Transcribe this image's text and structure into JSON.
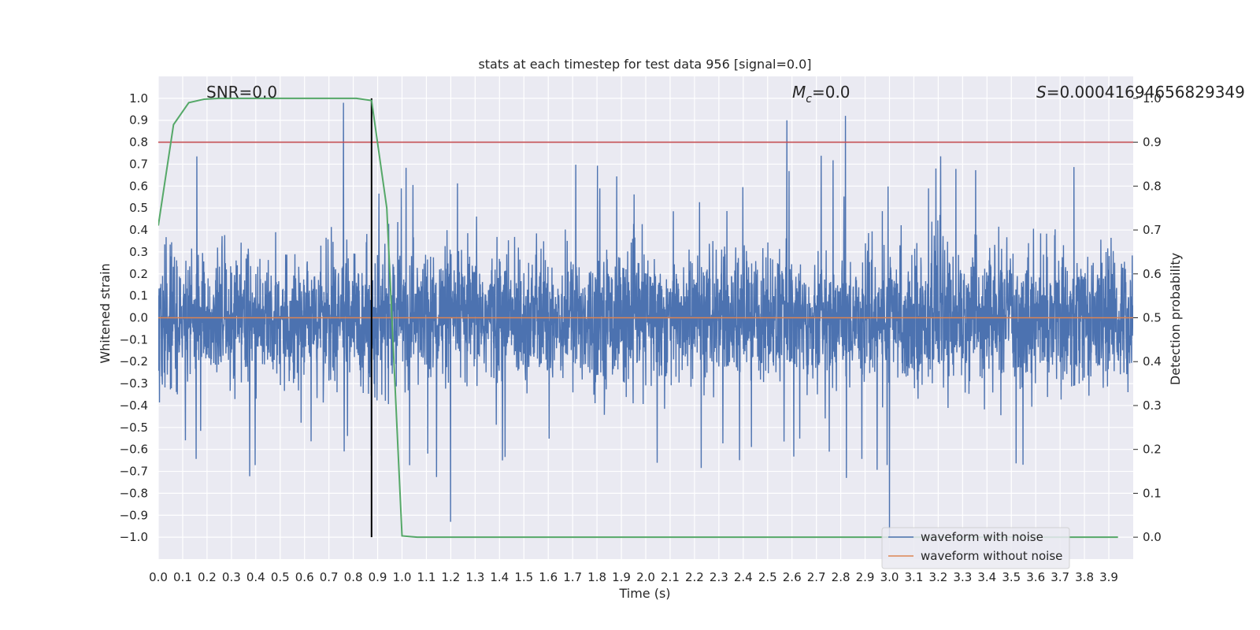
{
  "chart_data": {
    "type": "line",
    "title": "stats at each timestep for test data 956 [signal=0.0]",
    "xlabel": "Time (s)",
    "ylabel_left": "Whitened strain",
    "ylabel_right": "Detection probability",
    "xlim": [
      0.0,
      4.0
    ],
    "ylim_left": [
      -1.1,
      1.1
    ],
    "ylim_right": [
      -0.05,
      1.05
    ],
    "x_ticks": [
      "0.0",
      "0.1",
      "0.2",
      "0.3",
      "0.4",
      "0.5",
      "0.6",
      "0.7",
      "0.8",
      "0.9",
      "1.0",
      "1.1",
      "1.2",
      "1.3",
      "1.4",
      "1.5",
      "1.6",
      "1.7",
      "1.8",
      "1.9",
      "2.0",
      "2.1",
      "2.2",
      "2.3",
      "2.4",
      "2.5",
      "2.6",
      "2.7",
      "2.8",
      "2.9",
      "3.0",
      "3.1",
      "3.2",
      "3.3",
      "3.4",
      "3.5",
      "3.6",
      "3.7",
      "3.8",
      "3.9"
    ],
    "y_ticks_left": [
      "1.0",
      "0.9",
      "0.8",
      "0.7",
      "0.6",
      "0.5",
      "0.4",
      "0.3",
      "0.2",
      "0.1",
      "0.0",
      "−0.1",
      "−0.2",
      "−0.3",
      "−0.4",
      "−0.5",
      "−0.6",
      "−0.7",
      "−0.8",
      "−0.9",
      "−1.0"
    ],
    "y_ticks_right": [
      "1.0",
      "0.9",
      "0.8",
      "0.7",
      "0.6",
      "0.5",
      "0.4",
      "0.3",
      "0.2",
      "0.1",
      "0.0"
    ],
    "annotations": {
      "snr": "SNR=0.0",
      "mc_symbol": "M",
      "mc_sub": "c",
      "mc_value": "=0.0",
      "s_symbol": "S",
      "s_value": "=0.00041694656829349"
    },
    "noise_series": {
      "name": "waveform with noise",
      "color": "#4c72b0",
      "typical_amplitude": 0.35,
      "max": 0.98,
      "min": -1.0
    },
    "clean_series": {
      "name": "waveform without noise",
      "color": "#dd8452",
      "values": "≈0.0 throughout"
    },
    "threshold": {
      "value": 0.9,
      "axis": "right",
      "color": "#c44e52"
    },
    "detection_marker": {
      "x": 0.875,
      "color": "#000000"
    },
    "detection_probability": {
      "color": "#55a868",
      "x": [
        0.0,
        0.0625,
        0.125,
        0.1875,
        0.25,
        0.3125,
        0.375,
        0.4375,
        0.5,
        0.5625,
        0.625,
        0.6875,
        0.75,
        0.8125,
        0.875,
        0.9375,
        1.0,
        1.0625,
        1.125,
        1.5,
        2.0,
        2.5,
        3.0,
        3.5,
        3.9375
      ],
      "y": [
        0.71,
        0.94,
        0.99,
        0.998,
        1.0,
        1.0,
        1.0,
        1.0,
        1.0,
        1.0,
        1.0,
        1.0,
        1.0,
        1.0,
        0.995,
        0.75,
        0.003,
        0.0,
        0.0,
        0.0,
        0.0,
        0.0,
        0.0,
        0.0,
        0.0
      ]
    },
    "legend": {
      "placement": "bottom-right",
      "entries": [
        {
          "label": "waveform with noise",
          "color": "#4c72b0"
        },
        {
          "label": "waveform without noise",
          "color": "#dd8452"
        }
      ]
    },
    "grid": true
  }
}
